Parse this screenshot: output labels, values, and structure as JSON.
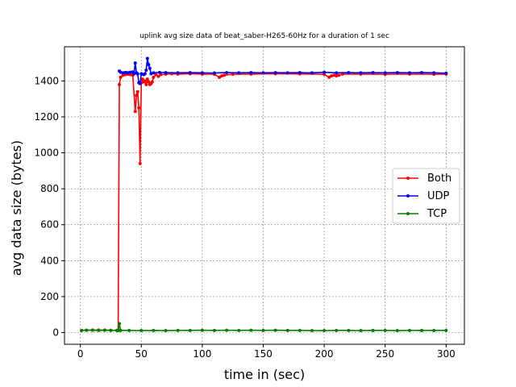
{
  "chart_data": {
    "type": "line",
    "title": "uplink avg size data of beat_saber-H265-60Hz for a duration of 1 sec",
    "xlabel": "time in (sec)",
    "ylabel": "avg data size (bytes)",
    "xlim": [
      -13,
      315
    ],
    "ylim": [
      -65,
      1590
    ],
    "xticks": [
      0,
      50,
      100,
      150,
      200,
      250,
      300
    ],
    "yticks": [
      0,
      200,
      400,
      600,
      800,
      1000,
      1200,
      1400
    ],
    "grid": true,
    "legend_position": "center-right",
    "series": [
      {
        "name": "Both",
        "color": "#ff0000",
        "points": [
          [
            1,
            12
          ],
          [
            5,
            13
          ],
          [
            10,
            14
          ],
          [
            15,
            14
          ],
          [
            20,
            14
          ],
          [
            25,
            13
          ],
          [
            30,
            12
          ],
          [
            31,
            13
          ],
          [
            32,
            1380
          ],
          [
            33,
            1420
          ],
          [
            35,
            1432
          ],
          [
            37,
            1435
          ],
          [
            39,
            1437
          ],
          [
            41,
            1435
          ],
          [
            43,
            1432
          ],
          [
            45,
            1230
          ],
          [
            46,
            1320
          ],
          [
            47,
            1340
          ],
          [
            48,
            1250
          ],
          [
            49,
            940
          ],
          [
            50,
            1390
          ],
          [
            51,
            1410
          ],
          [
            52,
            1395
          ],
          [
            53,
            1400
          ],
          [
            54,
            1380
          ],
          [
            55,
            1410
          ],
          [
            56,
            1395
          ],
          [
            57,
            1380
          ],
          [
            58,
            1385
          ],
          [
            59,
            1395
          ],
          [
            60,
            1420
          ],
          [
            62,
            1435
          ],
          [
            64,
            1425
          ],
          [
            66,
            1435
          ],
          [
            70,
            1438
          ],
          [
            75,
            1440
          ],
          [
            80,
            1438
          ],
          [
            90,
            1440
          ],
          [
            100,
            1438
          ],
          [
            110,
            1437
          ],
          [
            114,
            1420
          ],
          [
            116,
            1428
          ],
          [
            118,
            1432
          ],
          [
            125,
            1437
          ],
          [
            140,
            1438
          ],
          [
            160,
            1440
          ],
          [
            180,
            1439
          ],
          [
            200,
            1437
          ],
          [
            204,
            1420
          ],
          [
            206,
            1428
          ],
          [
            208,
            1432
          ],
          [
            210,
            1428
          ],
          [
            212,
            1432
          ],
          [
            215,
            1438
          ],
          [
            230,
            1438
          ],
          [
            250,
            1437
          ],
          [
            270,
            1438
          ],
          [
            290,
            1437
          ],
          [
            300,
            1438
          ]
        ]
      },
      {
        "name": "UDP",
        "color": "#0000ff",
        "points": [
          [
            32,
            1455
          ],
          [
            33,
            1448
          ],
          [
            35,
            1445
          ],
          [
            37,
            1447
          ],
          [
            39,
            1446
          ],
          [
            41,
            1448
          ],
          [
            43,
            1450
          ],
          [
            44,
            1440
          ],
          [
            45,
            1500
          ],
          [
            46,
            1445
          ],
          [
            47,
            1440
          ],
          [
            48,
            1390
          ],
          [
            49,
            1385
          ],
          [
            50,
            1440
          ],
          [
            52,
            1435
          ],
          [
            53,
            1440
          ],
          [
            54,
            1460
          ],
          [
            55,
            1525
          ],
          [
            56,
            1490
          ],
          [
            57,
            1470
          ],
          [
            58,
            1440
          ],
          [
            60,
            1445
          ],
          [
            65,
            1447
          ],
          [
            70,
            1446
          ],
          [
            80,
            1445
          ],
          [
            90,
            1446
          ],
          [
            100,
            1445
          ],
          [
            110,
            1444
          ],
          [
            120,
            1446
          ],
          [
            130,
            1445
          ],
          [
            140,
            1446
          ],
          [
            150,
            1445
          ],
          [
            160,
            1446
          ],
          [
            170,
            1445
          ],
          [
            180,
            1446
          ],
          [
            190,
            1445
          ],
          [
            200,
            1448
          ],
          [
            210,
            1445
          ],
          [
            220,
            1446
          ],
          [
            230,
            1445
          ],
          [
            240,
            1446
          ],
          [
            250,
            1445
          ],
          [
            260,
            1446
          ],
          [
            270,
            1445
          ],
          [
            280,
            1446
          ],
          [
            290,
            1445
          ],
          [
            300,
            1443
          ]
        ]
      },
      {
        "name": "TCP",
        "color": "#008000",
        "points": [
          [
            1,
            12
          ],
          [
            5,
            13
          ],
          [
            10,
            13
          ],
          [
            15,
            12
          ],
          [
            20,
            13
          ],
          [
            25,
            12
          ],
          [
            30,
            12
          ],
          [
            31,
            11
          ],
          [
            32,
            50
          ],
          [
            33,
            12
          ],
          [
            40,
            12
          ],
          [
            50,
            11
          ],
          [
            60,
            12
          ],
          [
            70,
            11
          ],
          [
            80,
            12
          ],
          [
            90,
            12
          ],
          [
            100,
            13
          ],
          [
            110,
            12
          ],
          [
            120,
            13
          ],
          [
            130,
            12
          ],
          [
            140,
            13
          ],
          [
            150,
            12
          ],
          [
            160,
            13
          ],
          [
            170,
            12
          ],
          [
            180,
            12
          ],
          [
            190,
            11
          ],
          [
            200,
            11
          ],
          [
            210,
            12
          ],
          [
            220,
            12
          ],
          [
            230,
            11
          ],
          [
            240,
            12
          ],
          [
            250,
            12
          ],
          [
            260,
            11
          ],
          [
            270,
            12
          ],
          [
            280,
            12
          ],
          [
            290,
            12
          ],
          [
            300,
            12
          ]
        ]
      }
    ]
  }
}
